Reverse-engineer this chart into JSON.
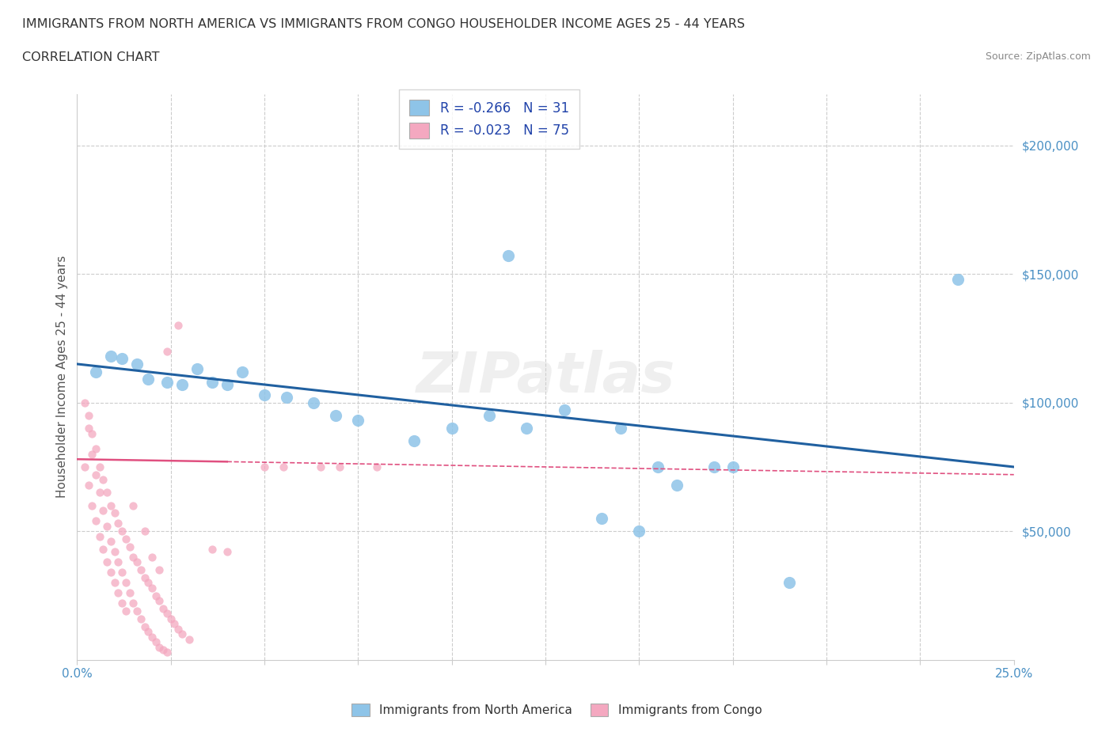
{
  "title_line1": "IMMIGRANTS FROM NORTH AMERICA VS IMMIGRANTS FROM CONGO HOUSEHOLDER INCOME AGES 25 - 44 YEARS",
  "title_line2": "CORRELATION CHART",
  "source_text": "Source: ZipAtlas.com",
  "ylabel": "Householder Income Ages 25 - 44 years",
  "xlim": [
    0.0,
    0.25
  ],
  "ylim": [
    0,
    220000
  ],
  "watermark": "ZIPatlas",
  "legend_r1": "R = -0.266   N = 31",
  "legend_r2": "R = -0.023   N = 75",
  "blue_color": "#8ec4e8",
  "pink_color": "#f4a8c0",
  "blue_line_color": "#2060a0",
  "pink_line_color": "#e05080",
  "na_points": [
    [
      0.005,
      112000
    ],
    [
      0.009,
      118000
    ],
    [
      0.012,
      117000
    ],
    [
      0.016,
      115000
    ],
    [
      0.019,
      109000
    ],
    [
      0.024,
      108000
    ],
    [
      0.028,
      107000
    ],
    [
      0.032,
      113000
    ],
    [
      0.036,
      108000
    ],
    [
      0.04,
      107000
    ],
    [
      0.044,
      112000
    ],
    [
      0.05,
      103000
    ],
    [
      0.056,
      102000
    ],
    [
      0.063,
      100000
    ],
    [
      0.069,
      95000
    ],
    [
      0.075,
      93000
    ],
    [
      0.09,
      85000
    ],
    [
      0.1,
      90000
    ],
    [
      0.11,
      95000
    ],
    [
      0.12,
      90000
    ],
    [
      0.13,
      97000
    ],
    [
      0.145,
      90000
    ],
    [
      0.155,
      75000
    ],
    [
      0.16,
      68000
    ],
    [
      0.17,
      75000
    ],
    [
      0.175,
      75000
    ],
    [
      0.14,
      55000
    ],
    [
      0.15,
      50000
    ],
    [
      0.115,
      157000
    ],
    [
      0.235,
      148000
    ],
    [
      0.19,
      30000
    ]
  ],
  "cg_points": [
    [
      0.003,
      95000
    ],
    [
      0.004,
      88000
    ],
    [
      0.005,
      82000
    ],
    [
      0.006,
      75000
    ],
    [
      0.007,
      70000
    ],
    [
      0.008,
      65000
    ],
    [
      0.009,
      60000
    ],
    [
      0.01,
      57000
    ],
    [
      0.011,
      53000
    ],
    [
      0.012,
      50000
    ],
    [
      0.013,
      47000
    ],
    [
      0.014,
      44000
    ],
    [
      0.015,
      40000
    ],
    [
      0.016,
      38000
    ],
    [
      0.017,
      35000
    ],
    [
      0.018,
      32000
    ],
    [
      0.019,
      30000
    ],
    [
      0.02,
      28000
    ],
    [
      0.021,
      25000
    ],
    [
      0.022,
      23000
    ],
    [
      0.023,
      20000
    ],
    [
      0.024,
      18000
    ],
    [
      0.025,
      16000
    ],
    [
      0.026,
      14000
    ],
    [
      0.027,
      12000
    ],
    [
      0.028,
      10000
    ],
    [
      0.03,
      8000
    ],
    [
      0.002,
      100000
    ],
    [
      0.003,
      90000
    ],
    [
      0.004,
      80000
    ],
    [
      0.005,
      72000
    ],
    [
      0.006,
      65000
    ],
    [
      0.007,
      58000
    ],
    [
      0.008,
      52000
    ],
    [
      0.009,
      46000
    ],
    [
      0.01,
      42000
    ],
    [
      0.011,
      38000
    ],
    [
      0.012,
      34000
    ],
    [
      0.013,
      30000
    ],
    [
      0.014,
      26000
    ],
    [
      0.015,
      22000
    ],
    [
      0.016,
      19000
    ],
    [
      0.017,
      16000
    ],
    [
      0.018,
      13000
    ],
    [
      0.019,
      11000
    ],
    [
      0.02,
      9000
    ],
    [
      0.021,
      7000
    ],
    [
      0.022,
      5000
    ],
    [
      0.023,
      4000
    ],
    [
      0.024,
      3000
    ],
    [
      0.002,
      75000
    ],
    [
      0.003,
      68000
    ],
    [
      0.004,
      60000
    ],
    [
      0.005,
      54000
    ],
    [
      0.006,
      48000
    ],
    [
      0.007,
      43000
    ],
    [
      0.008,
      38000
    ],
    [
      0.009,
      34000
    ],
    [
      0.01,
      30000
    ],
    [
      0.011,
      26000
    ],
    [
      0.012,
      22000
    ],
    [
      0.013,
      19000
    ],
    [
      0.015,
      60000
    ],
    [
      0.018,
      50000
    ],
    [
      0.02,
      40000
    ],
    [
      0.022,
      35000
    ],
    [
      0.024,
      120000
    ],
    [
      0.027,
      130000
    ],
    [
      0.036,
      43000
    ],
    [
      0.04,
      42000
    ],
    [
      0.05,
      75000
    ],
    [
      0.055,
      75000
    ],
    [
      0.065,
      75000
    ],
    [
      0.07,
      75000
    ],
    [
      0.08,
      75000
    ]
  ]
}
